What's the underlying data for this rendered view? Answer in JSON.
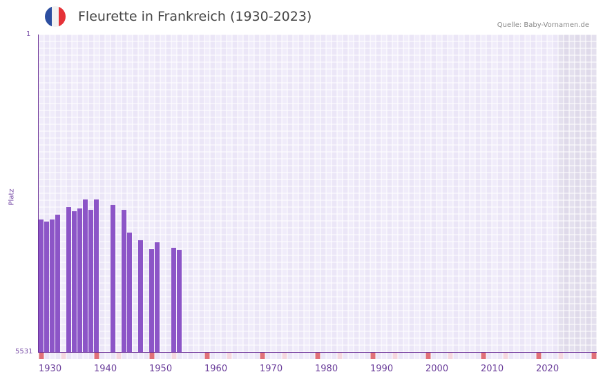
{
  "header": {
    "title": "Fleurette in Frankreich (1930-2023)",
    "source": "Quelle: Baby-Vornamen.de",
    "flag_colors": [
      "#2c4ea0",
      "#f2f2f2",
      "#e53238"
    ]
  },
  "colors": {
    "bar": "#8c55c7",
    "axis": "#6a2f96",
    "grid_a": "#f0ecfa",
    "grid_b": "#ebe6f7",
    "future_a": "#e4e0ee",
    "future_b": "#dfdaea",
    "decade_marker": "#e07078",
    "halfdecade_marker": "#f5d7df"
  },
  "chart_data": {
    "type": "bar",
    "title": "Fleurette in Frankreich (1930-2023)",
    "xlabel": "",
    "ylabel": "Platz",
    "y_inverted": true,
    "ylim": [
      5531,
      1
    ],
    "y_ticks": [
      "1",
      "5531"
    ],
    "x_range": [
      1930,
      2030
    ],
    "x_ticks": [
      "1930",
      "1940",
      "1950",
      "1960",
      "1970",
      "1980",
      "1990",
      "2000",
      "2010",
      "2020"
    ],
    "shaded_future_from": 2024,
    "categories": [
      1930,
      1931,
      1932,
      1933,
      1935,
      1936,
      1937,
      1938,
      1939,
      1940,
      1943,
      1945,
      1946,
      1948,
      1950,
      1951,
      1954,
      1955
    ],
    "values": [
      3223,
      3259,
      3223,
      3139,
      3007,
      3079,
      3031,
      2874,
      3055,
      2874,
      2970,
      3055,
      3451,
      3584,
      3740,
      3620,
      3716,
      3752
    ]
  }
}
